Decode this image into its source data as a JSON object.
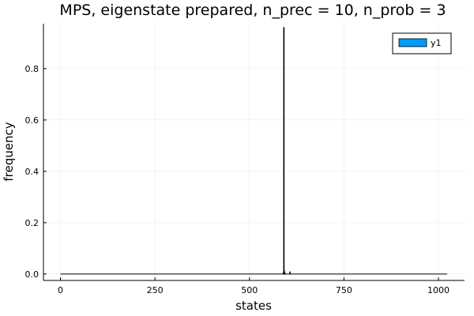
{
  "chart_data": {
    "type": "bar",
    "title": "MPS, eigenstate prepared, n_prec = 10, n_prob = 3",
    "xlabel": "states",
    "ylabel": "frequency",
    "xlim": [
      -45,
      1069
    ],
    "ylim": [
      -0.025,
      0.975
    ],
    "xticks": [
      0,
      250,
      500,
      750,
      1000
    ],
    "yticks": [
      0.0,
      0.2,
      0.4,
      0.6,
      0.8
    ],
    "ytick_labels": [
      "0.0",
      "0.2",
      "0.4",
      "0.6",
      "0.8"
    ],
    "xtick_labels": [
      "0",
      "250",
      "500",
      "750",
      "1000"
    ],
    "grid": true,
    "legend_position": "top-right",
    "series": [
      {
        "name": "y1",
        "color": "#009AFA",
        "baseline_range": [
          0,
          1023
        ],
        "x": [
          590,
          591,
          592,
          593,
          594,
          607
        ],
        "values": [
          0.005,
          0.96,
          0.012,
          0.004,
          0.002,
          0.008
        ]
      }
    ]
  }
}
